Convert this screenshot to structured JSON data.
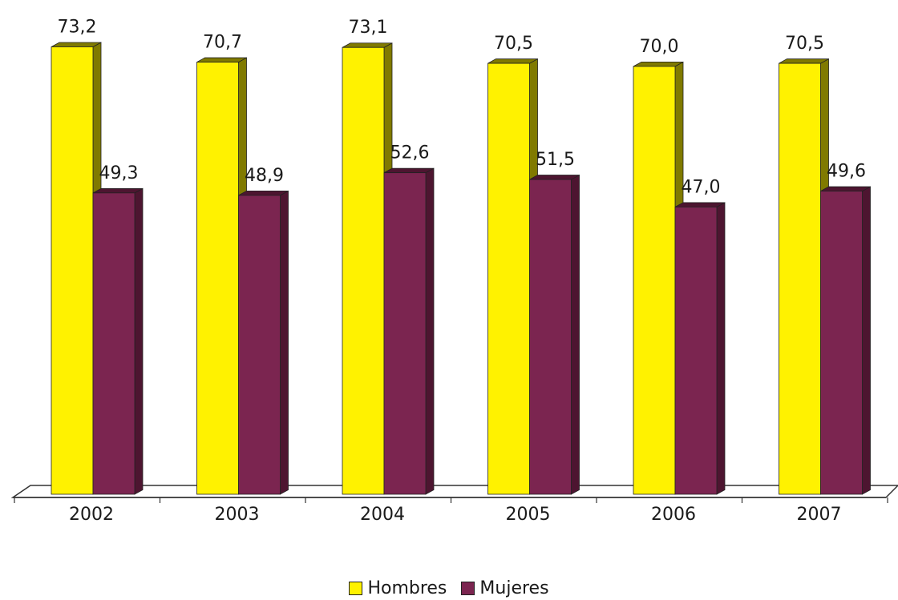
{
  "chart_data": {
    "type": "bar",
    "categories": [
      "2002",
      "2003",
      "2004",
      "2005",
      "2006",
      "2007"
    ],
    "series": [
      {
        "name": "Hombres",
        "values": [
          73.2,
          70.7,
          73.1,
          70.5,
          70.0,
          70.5
        ],
        "value_labels": [
          "73,2",
          "70,7",
          "73,1",
          "70,5",
          "70,0",
          "70,5"
        ],
        "color": "#FFF200",
        "side_color": "#807A00"
      },
      {
        "name": "Mujeres",
        "values": [
          49.3,
          48.9,
          52.6,
          51.5,
          47.0,
          49.6
        ],
        "value_labels": [
          "49,3",
          "48,9",
          "52,6",
          "51,5",
          "47,0",
          "49,6"
        ],
        "color": "#7B2550",
        "side_color": "#4D1530"
      }
    ],
    "ylim": [
      0,
      75
    ],
    "grid": false,
    "legend_position": "bottom"
  }
}
